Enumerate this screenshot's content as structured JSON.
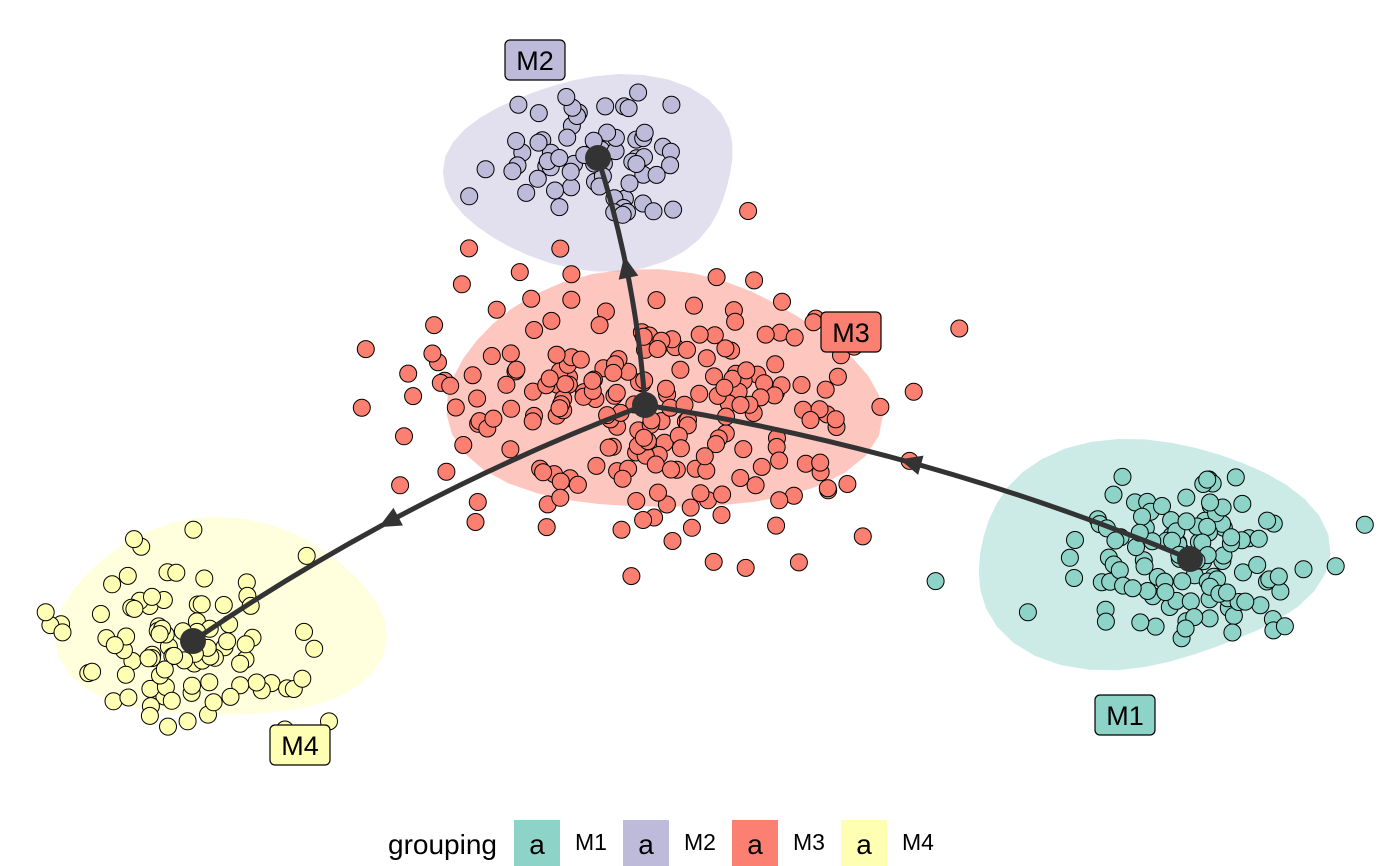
{
  "chart_data": {
    "type": "scatter",
    "title": "",
    "xlabel": "",
    "ylabel": "",
    "grid": false,
    "axes_visible": false,
    "legend": {
      "placement": "bottom",
      "title": "grouping",
      "key_glyph": "a",
      "entries": [
        {
          "name": "M1",
          "color": "#8dd3c7"
        },
        {
          "name": "M2",
          "color": "#bebada"
        },
        {
          "name": "M3",
          "color": "#fb8072"
        },
        {
          "name": "M4",
          "color": "#ffffb3"
        }
      ]
    },
    "groups": [
      {
        "name": "M1",
        "color": "#8dd3c7",
        "center": [
          1190,
          559
        ],
        "spread": [
          70,
          52
        ],
        "n": 120,
        "label": "M1",
        "label_pos": [
          1125,
          715
        ],
        "hull_center": [
          1145,
          554
        ],
        "hull_radius": [
          172,
          116
        ]
      },
      {
        "name": "M2",
        "color": "#bebada",
        "center": [
          598,
          158
        ],
        "spread": [
          58,
          42
        ],
        "n": 70,
        "label": "M2",
        "label_pos": [
          535,
          60
        ],
        "hull_center": [
          595,
          172
        ],
        "hull_radius": [
          148,
          95
        ]
      },
      {
        "name": "M3",
        "color": "#fb8072",
        "center": [
          645,
          405
        ],
        "spread": [
          125,
          75
        ],
        "n": 230,
        "label": "M3",
        "label_pos": [
          851,
          332
        ],
        "hull_center": [
          660,
          395
        ],
        "hull_radius": [
          210,
          122
        ]
      },
      {
        "name": "M4",
        "color": "#ffffb3",
        "center": [
          193,
          641
        ],
        "spread": [
          70,
          45
        ],
        "n": 95,
        "label": "M4",
        "label_pos": [
          300,
          745
        ],
        "hull_center": [
          220,
          622
        ],
        "hull_radius": [
          158,
          103
        ]
      }
    ],
    "trajectory": {
      "color": "#333333",
      "root": "M3",
      "milestones": [
        {
          "name": "M1",
          "pos": [
            1190,
            559
          ]
        },
        {
          "name": "M2",
          "pos": [
            598,
            158
          ]
        },
        {
          "name": "M3",
          "pos": [
            645,
            405
          ]
        },
        {
          "name": "M4",
          "pos": [
            193,
            641
          ]
        }
      ],
      "edges": [
        {
          "from": "M3",
          "to": "M2",
          "arrow_pos": 0.55
        },
        {
          "from": "M1",
          "to": "M3",
          "arrow_pos": 0.52
        },
        {
          "from": "M3",
          "to": "M4",
          "arrow_pos": 0.55
        }
      ]
    }
  }
}
